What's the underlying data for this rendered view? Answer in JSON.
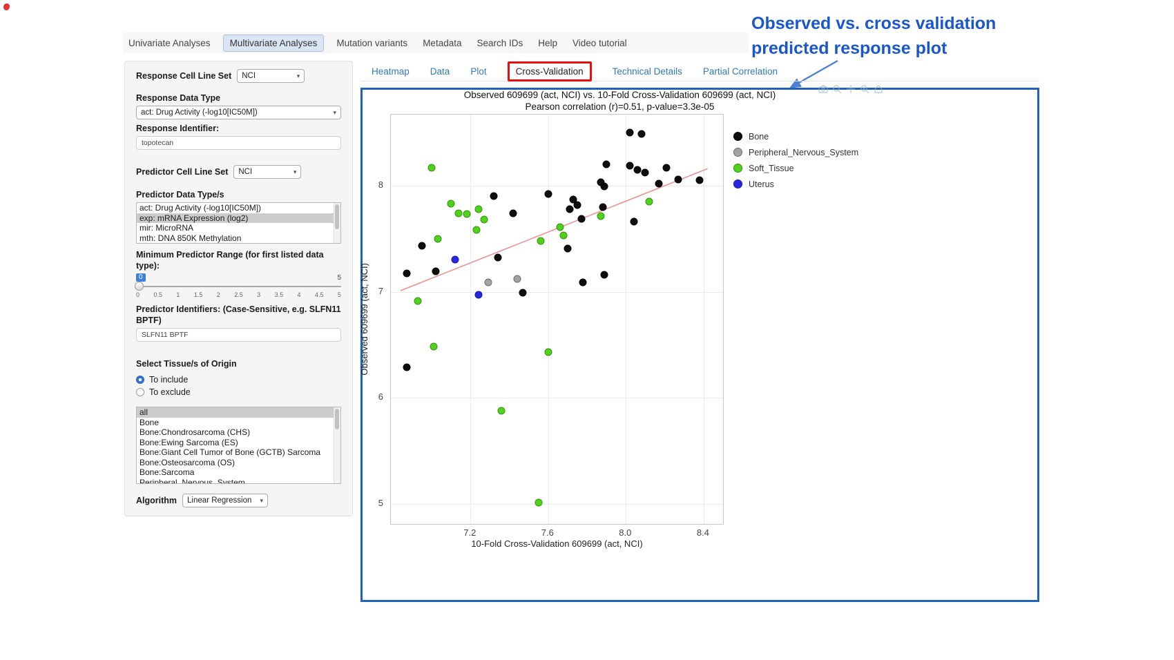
{
  "annotation": {
    "text_line1": "Observed vs. cross validation",
    "text_line2": "predicted response plot"
  },
  "colors": {
    "annotation_blue": "#1a56cd",
    "highlight_red": "#ea0d0d",
    "panel_border_blue": "#1d62b4",
    "link_blue": "#337ab7",
    "regression_pink": "#f08e8e"
  },
  "nav": {
    "tabs": [
      {
        "label": "Univariate Analyses",
        "active": false
      },
      {
        "label": "Multivariate Analyses",
        "active": true
      },
      {
        "label": "Mutation variants",
        "active": false
      },
      {
        "label": "Metadata",
        "active": false
      },
      {
        "label": "Search IDs",
        "active": false
      },
      {
        "label": "Help",
        "active": false
      },
      {
        "label": "Video tutorial",
        "active": false
      }
    ]
  },
  "sidebar": {
    "response_cell_line_set_label": "Response Cell Line Set",
    "response_cell_line_set_value": "NCI",
    "response_data_type_label": "Response Data Type",
    "response_data_type_value": "act: Drug Activity (-log10[IC50M])",
    "response_identifier_label": "Response Identifier:",
    "response_identifier_value": "topotecan",
    "predictor_cell_line_set_label": "Predictor Cell Line Set",
    "predictor_cell_line_set_value": "NCI",
    "predictor_data_types_label": "Predictor Data Type/s",
    "predictor_data_types_options": [
      "act: Drug Activity (-log10[IC50M])",
      "exp: mRNA Expression (log2)",
      "mir: MicroRNA",
      "mth: DNA 850K Methylation"
    ],
    "predictor_data_types_selected_index": 1,
    "min_predictor_range_label": "Minimum Predictor Range (for first listed data type):",
    "slider": {
      "value": "0",
      "max": "5",
      "ticks": [
        "0",
        "0.5",
        "1",
        "1.5",
        "2",
        "2.5",
        "3",
        "3.5",
        "4",
        "4.5",
        "5"
      ]
    },
    "predictor_identifiers_label": "Predictor Identifiers: (Case-Sensitive, e.g. SLFN11 BPTF)",
    "predictor_identifiers_value": "SLFN11 BPTF",
    "tissue_label": "Select Tissue/s of Origin",
    "tissue_radios": [
      {
        "label": "To include",
        "selected": true
      },
      {
        "label": "To exclude",
        "selected": false
      }
    ],
    "tissue_options": [
      "all",
      "Bone",
      "Bone:Chondrosarcoma (CHS)",
      "Bone:Ewing Sarcoma (ES)",
      "Bone:Giant Cell Tumor of Bone (GCTB) Sarcoma",
      "Bone:Osteosarcoma (OS)",
      "Bone:Sarcoma",
      "Peripheral_Nervous_System"
    ],
    "tissue_selected_index": 0,
    "algorithm_label": "Algorithm",
    "algorithm_value": "Linear Regression"
  },
  "subtabs": {
    "items": [
      {
        "label": "Heatmap",
        "active": false,
        "highlighted": false
      },
      {
        "label": "Data",
        "active": false,
        "highlighted": false
      },
      {
        "label": "Plot",
        "active": false,
        "highlighted": false
      },
      {
        "label": "Cross-Validation",
        "active": true,
        "highlighted": true
      },
      {
        "label": "Technical Details",
        "active": false,
        "highlighted": false
      },
      {
        "label": "Partial Correlation",
        "active": false,
        "highlighted": false
      }
    ]
  },
  "chart_data": {
    "type": "scatter",
    "title": "Observed 609699 (act, NCI) vs. 10-Fold Cross-Validation 609699 (act, NCI)",
    "subtitle": "Pearson correlation (r)=0.51, p-value=3.3e-05",
    "xlabel": "10-Fold Cross-Validation 609699 (act, NCI)",
    "ylabel": "Observed 609699 (act, NCI)",
    "xlim": [
      6.79,
      8.5
    ],
    "ylim": [
      4.81,
      8.67
    ],
    "xticks": [
      {
        "v": 7.2,
        "label": "7.2"
      },
      {
        "v": 7.6,
        "label": "7.6"
      },
      {
        "v": 8.0,
        "label": "8.0"
      },
      {
        "v": 8.4,
        "label": "8.4"
      }
    ],
    "yticks": [
      {
        "v": 5,
        "label": "5"
      },
      {
        "v": 6,
        "label": "6"
      },
      {
        "v": 7,
        "label": "7"
      },
      {
        "v": 8,
        "label": "8"
      }
    ],
    "grid": true,
    "legend_position": "right",
    "regression_line": {
      "x1": 6.84,
      "y1": 7.01,
      "x2": 8.42,
      "y2": 8.16,
      "color": "#f08e8e"
    },
    "series": [
      {
        "name": "Bone",
        "color": "#0d0d0d",
        "stroke": "#000000",
        "points": [
          [
            8.02,
            8.5
          ],
          [
            8.08,
            8.49
          ],
          [
            7.9,
            8.2
          ],
          [
            8.02,
            8.19
          ],
          [
            8.06,
            8.15
          ],
          [
            8.1,
            8.12
          ],
          [
            8.21,
            8.17
          ],
          [
            8.27,
            8.06
          ],
          [
            8.38,
            8.05
          ],
          [
            7.87,
            8.03
          ],
          [
            7.89,
            7.99
          ],
          [
            8.17,
            8.02
          ],
          [
            7.6,
            7.92
          ],
          [
            7.32,
            7.9
          ],
          [
            7.73,
            7.87
          ],
          [
            7.75,
            7.82
          ],
          [
            7.71,
            7.78
          ],
          [
            7.88,
            7.8
          ],
          [
            7.77,
            7.69
          ],
          [
            8.04,
            7.66
          ],
          [
            7.42,
            7.74
          ],
          [
            6.95,
            7.43
          ],
          [
            7.7,
            7.41
          ],
          [
            7.34,
            7.32
          ],
          [
            6.87,
            7.17
          ],
          [
            7.02,
            7.19
          ],
          [
            7.78,
            7.09
          ],
          [
            7.89,
            7.16
          ],
          [
            7.47,
            6.99
          ],
          [
            6.87,
            6.29
          ]
        ]
      },
      {
        "name": "Peripheral_Nervous_System",
        "color": "#a3a3a3",
        "stroke": "#6b6b6b",
        "points": [
          [
            7.29,
            7.09
          ],
          [
            7.44,
            7.12
          ]
        ]
      },
      {
        "name": "Soft_Tissue",
        "color": "#52d01e",
        "stroke": "#2f9608",
        "points": [
          [
            7.0,
            8.17
          ],
          [
            7.1,
            7.83
          ],
          [
            7.14,
            7.74
          ],
          [
            7.18,
            7.73
          ],
          [
            7.24,
            7.78
          ],
          [
            7.27,
            7.68
          ],
          [
            7.23,
            7.58
          ],
          [
            7.03,
            7.5
          ],
          [
            7.56,
            7.48
          ],
          [
            7.66,
            7.61
          ],
          [
            7.68,
            7.53
          ],
          [
            7.87,
            7.71
          ],
          [
            8.12,
            7.85
          ],
          [
            6.93,
            6.91
          ],
          [
            7.01,
            6.48
          ],
          [
            7.6,
            6.43
          ],
          [
            7.36,
            5.88
          ],
          [
            7.55,
            5.01
          ]
        ]
      },
      {
        "name": "Uterus",
        "color": "#2727e0",
        "stroke": "#1515b0",
        "points": [
          [
            7.12,
            7.3
          ],
          [
            7.24,
            6.97
          ]
        ]
      }
    ]
  }
}
